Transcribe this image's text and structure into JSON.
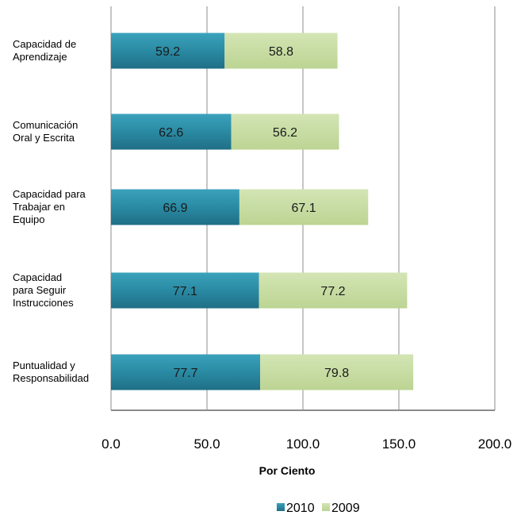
{
  "chart_data": {
    "type": "bar",
    "orientation": "horizontal",
    "stacked": true,
    "categories": [
      [
        "Capacidad de",
        "Aprendizaje"
      ],
      [
        "Comunicación",
        "Oral y Escrita"
      ],
      [
        "Capacidad para",
        "Trabajar en",
        "Equipo"
      ],
      [
        "Capacidad",
        "para Seguir",
        "Instrucciones"
      ],
      [
        "Puntualidad y",
        "Responsabilidad"
      ]
    ],
    "series": [
      {
        "name": "2010",
        "color": "#2d8fa8",
        "values": [
          59.2,
          62.6,
          66.9,
          77.1,
          77.7
        ]
      },
      {
        "name": "2009",
        "color": "#c5dba1",
        "values": [
          58.8,
          56.2,
          67.1,
          77.2,
          79.8
        ]
      }
    ],
    "xlabel": "Por Ciento",
    "xlim": [
      0,
      200
    ],
    "xticks": [
      "0.0",
      "50.0",
      "100.0",
      "150.0",
      "200.0"
    ],
    "grid": true,
    "legend_position": "bottom"
  }
}
